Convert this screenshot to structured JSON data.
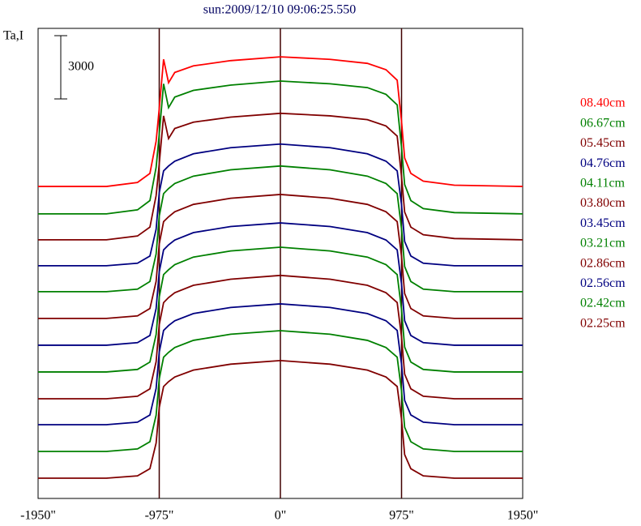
{
  "chart_data": {
    "type": "line",
    "title": "sun:2009/12/10 09:06:25.550",
    "y_label": "Ta,I",
    "scale_bar": 3000,
    "xlim": [
      -1950,
      1950
    ],
    "ylim": [
      0,
      22300
    ],
    "xticks": [
      {
        "value": -1950,
        "label": "-1950\""
      },
      {
        "value": -975,
        "label": "-975\""
      },
      {
        "value": 0,
        "label": "0\""
      },
      {
        "value": 975,
        "label": "975\""
      },
      {
        "value": 1950,
        "label": "1950\""
      }
    ],
    "grid": true,
    "x": [
      -1950,
      -1400,
      -1150,
      -1050,
      -1000,
      -975,
      -940,
      -900,
      -850,
      -700,
      -400,
      0,
      400,
      700,
      850,
      940,
      975,
      1000,
      1050,
      1150,
      1400,
      1950
    ],
    "series": [
      {
        "name": "08.40cm",
        "color": "#ff0000",
        "values": [
          14800,
          14800,
          14990,
          15420,
          16950,
          18490,
          20830,
          19720,
          20210,
          20520,
          20770,
          20950,
          20830,
          20640,
          20340,
          19840,
          17880,
          16150,
          15420,
          15050,
          14860,
          14800
        ]
      },
      {
        "name": "06.67cm",
        "color": "#008000",
        "values": [
          13500,
          13500,
          13690,
          14130,
          15710,
          17280,
          19670,
          18540,
          19040,
          19360,
          19610,
          19800,
          19670,
          19490,
          19170,
          18670,
          16650,
          14890,
          14130,
          13750,
          13560,
          13500
        ]
      },
      {
        "name": "05.45cm",
        "color": "#800000",
        "values": [
          12270,
          12270,
          12450,
          12870,
          14370,
          15870,
          18150,
          17070,
          17550,
          17850,
          18090,
          18270,
          18150,
          17970,
          17670,
          17190,
          15270,
          13590,
          12870,
          12510,
          12330,
          12270
        ]
      },
      {
        "name": "04.76cm",
        "color": "#000080",
        "values": [
          11040,
          11040,
          11160,
          11500,
          12770,
          14500,
          15540,
          15770,
          16000,
          16350,
          16640,
          16810,
          16640,
          16350,
          16000,
          15540,
          13930,
          12190,
          11500,
          11160,
          11040,
          11040
        ]
      },
      {
        "name": "04.11cm",
        "color": "#008000",
        "values": [
          9810,
          9810,
          9930,
          10290,
          11600,
          13390,
          14460,
          14700,
          14940,
          15290,
          15590,
          15770,
          15590,
          15290,
          14940,
          14460,
          12790,
          11000,
          10290,
          9930,
          9810,
          9810
        ]
      },
      {
        "name": "03.80cm",
        "color": "#800000",
        "values": [
          8540,
          8540,
          8660,
          9010,
          10300,
          12070,
          13130,
          13360,
          13600,
          13950,
          14240,
          14420,
          14240,
          13950,
          13600,
          13130,
          11480,
          9720,
          9010,
          8660,
          8540,
          8540
        ]
      },
      {
        "name": "03.45cm",
        "color": "#000080",
        "values": [
          7270,
          7270,
          7390,
          7730,
          9010,
          10750,
          11790,
          12030,
          12260,
          12610,
          12900,
          13070,
          12900,
          12610,
          12260,
          11790,
          10170,
          8430,
          7730,
          7390,
          7270,
          7270
        ]
      },
      {
        "name": "03.21cm",
        "color": "#008000",
        "values": [
          6000,
          6000,
          6120,
          6470,
          7780,
          9550,
          10620,
          10850,
          11090,
          11450,
          11740,
          11920,
          11740,
          11450,
          11090,
          10620,
          8960,
          7180,
          6470,
          6120,
          6000,
          6000
        ]
      },
      {
        "name": "02.86cm",
        "color": "#800000",
        "values": [
          4730,
          4730,
          4850,
          5200,
          6490,
          8240,
          9290,
          9530,
          9760,
          10110,
          10400,
          10580,
          10400,
          10110,
          9760,
          9290,
          7660,
          5900,
          5200,
          4850,
          4730,
          4730
        ]
      },
      {
        "name": "02.56cm",
        "color": "#000080",
        "values": [
          3500,
          3500,
          3620,
          3960,
          5220,
          6940,
          7970,
          8200,
          8430,
          8770,
          9060,
          9230,
          9060,
          8770,
          8430,
          7970,
          6370,
          4650,
          3960,
          3620,
          3500,
          3500
        ]
      },
      {
        "name": "02.42cm",
        "color": "#008000",
        "values": [
          2230,
          2230,
          2350,
          2690,
          3950,
          5670,
          6700,
          6930,
          7160,
          7500,
          7790,
          7960,
          7790,
          7500,
          7160,
          6700,
          5100,
          3380,
          2690,
          2350,
          2230,
          2230
        ]
      },
      {
        "name": "02.25cm",
        "color": "#800000",
        "values": [
          960,
          960,
          1070,
          1410,
          2630,
          4310,
          5310,
          5540,
          5760,
          6090,
          6370,
          6540,
          6370,
          6090,
          5760,
          5310,
          3750,
          2080,
          1410,
          1070,
          960,
          960
        ]
      }
    ]
  }
}
